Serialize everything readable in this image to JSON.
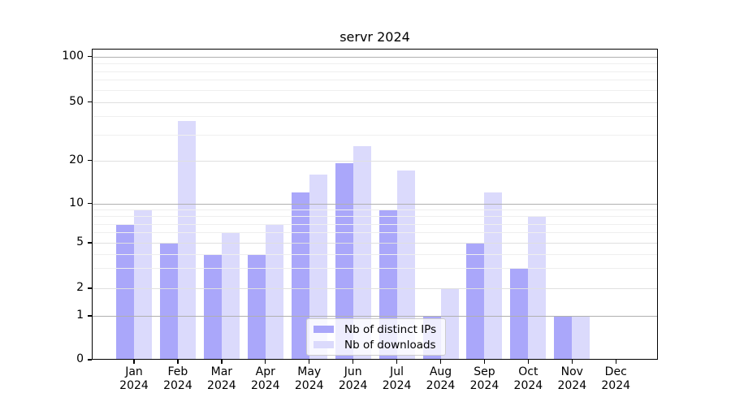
{
  "title": "servr 2024",
  "chart_data": {
    "type": "bar",
    "title": "servr 2024",
    "categories": [
      "Jan",
      "Feb",
      "Mar",
      "Apr",
      "May",
      "Jun",
      "Jul",
      "Aug",
      "Sep",
      "Oct",
      "Nov",
      "Dec"
    ],
    "year": "2024",
    "series": [
      {
        "name": "Nb of distinct IPs",
        "color": "#aaa7fa",
        "values": [
          7,
          5,
          4,
          4,
          12,
          19,
          9,
          1,
          5,
          3,
          1,
          0
        ]
      },
      {
        "name": "Nb of downloads",
        "color": "#dbdafc",
        "values": [
          9,
          37,
          6,
          7,
          16,
          25,
          17,
          2,
          12,
          8,
          1,
          0
        ]
      }
    ],
    "xlabel": "",
    "ylabel": "",
    "yticks": [
      0,
      1,
      2,
      5,
      10,
      20,
      50,
      100
    ],
    "ylim": [
      0,
      110
    ],
    "yscale": "log-like",
    "grid": true,
    "legend_position": "lower center",
    "colors": {
      "distinct_ips": "#aaa7fa",
      "downloads": "#dbdafc",
      "decade_gridline": "#b0b0b0",
      "minor_gridline": "#efefef"
    }
  }
}
